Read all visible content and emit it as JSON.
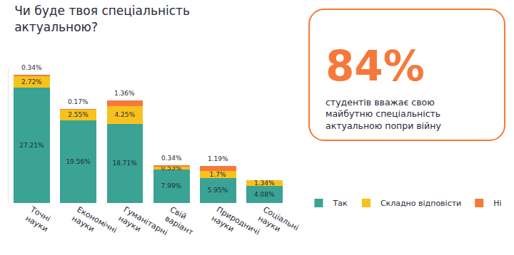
{
  "chart_data": {
    "type": "bar",
    "title": "Чи буде твоя спеціальність актуальною?",
    "categories": [
      "Точні науки",
      "Економічні науки",
      "Гуманітарні науки",
      "Свій варіант",
      "Природничі науки",
      "Соціальні науки"
    ],
    "series": [
      {
        "name": "Так",
        "color": "#3aa394",
        "values": [
          27.21,
          19.56,
          18.71,
          7.99,
          5.95,
          4.08
        ],
        "value_labels": [
          "27.21%",
          "19.56%",
          "18.71%",
          "7.99%",
          "5.95%",
          "4.08%"
        ]
      },
      {
        "name": "Складно відповісти",
        "color": "#f8c21c",
        "values": [
          2.72,
          2.55,
          4.25,
          0.53,
          1.7,
          1.34
        ],
        "value_labels": [
          "2.72%",
          "2.55%",
          "4.25%",
          "0.53%",
          "1.7%",
          "1.34%"
        ]
      },
      {
        "name": "Ні",
        "color": "#f5793b",
        "values": [
          0.34,
          0.17,
          1.36,
          0.34,
          1.19,
          null
        ],
        "value_labels": [
          "0.34%",
          "0.17%",
          "1.36%",
          "0.34%",
          "1.19%",
          null
        ]
      }
    ],
    "stacked": true,
    "data_labels": true,
    "ylim": [
      0,
      32
    ],
    "tick_labels": "x",
    "grid": false,
    "legend": "bottom right"
  },
  "callout": {
    "headline": "84%",
    "text": "студентів вважає свою майбутню спеціальність актуальною попри війну"
  }
}
